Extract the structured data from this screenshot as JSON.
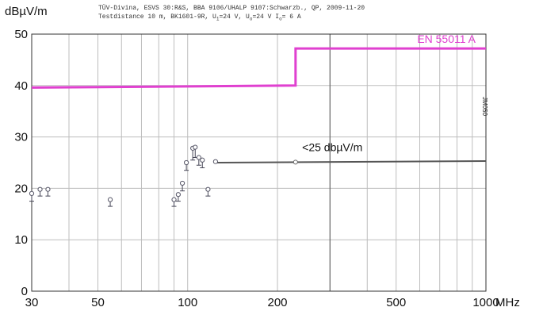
{
  "chart_data": {
    "type": "scatter",
    "ylabel": "dBµV/m",
    "xunit": "MHz",
    "x_scale": "log",
    "xlim": [
      30,
      1000
    ],
    "ylim": [
      0,
      50
    ],
    "x_ticks": [
      30,
      50,
      100,
      200,
      500,
      1000
    ],
    "x_tick_labels": [
      "30",
      "50",
      "100",
      "200",
      "500",
      "1000"
    ],
    "y_ticks": [
      0,
      10,
      20,
      30,
      40,
      50
    ],
    "header_line1": "TÜV-Divina, ESVS 30:R&S, BBA 9106/UHALP 9107:Schwarzb., QP, 2009-11-20",
    "header_line2": {
      "prefix": "Testdistance 10 m, BK1601-9R, U",
      "sub1": "1",
      "mid1": "=24 V, U",
      "sub2": "o",
      "mid2": "=24 V I",
      "sub3": "o",
      "suffix": "= 6 A"
    },
    "side_label": "JM050",
    "limit_line": {
      "name": "EN 55011 A",
      "color": "#e040d0",
      "points": [
        [
          30,
          39.6
        ],
        [
          230,
          40.0
        ],
        [
          230,
          47.2
        ],
        [
          1000,
          47.2
        ]
      ]
    },
    "reference_line": {
      "name": "<25 dbµV/m",
      "color": "#555555",
      "points": [
        [
          125,
          25.0
        ],
        [
          1000,
          25.3
        ]
      ]
    },
    "measurements": [
      {
        "x": 30,
        "y": 19.0,
        "low": 17.5
      },
      {
        "x": 32,
        "y": 19.8,
        "low": 18.5
      },
      {
        "x": 34,
        "y": 19.8,
        "low": 18.5
      },
      {
        "x": 55,
        "y": 17.8,
        "low": 16.5
      },
      {
        "x": 90,
        "y": 17.8,
        "low": 16.5
      },
      {
        "x": 93,
        "y": 18.8,
        "low": 17.5
      },
      {
        "x": 96,
        "y": 21.0,
        "low": 19.5
      },
      {
        "x": 99,
        "y": 25.0,
        "low": 23.5
      },
      {
        "x": 104,
        "y": 27.8,
        "low": 25.5
      },
      {
        "x": 106,
        "y": 28.0,
        "low": 26.0
      },
      {
        "x": 109,
        "y": 26.0,
        "low": 24.5
      },
      {
        "x": 112,
        "y": 25.5,
        "low": 24.0
      },
      {
        "x": 117,
        "y": 19.8,
        "low": 18.5
      },
      {
        "x": 124,
        "y": 25.2,
        "low": 25.2
      }
    ]
  }
}
